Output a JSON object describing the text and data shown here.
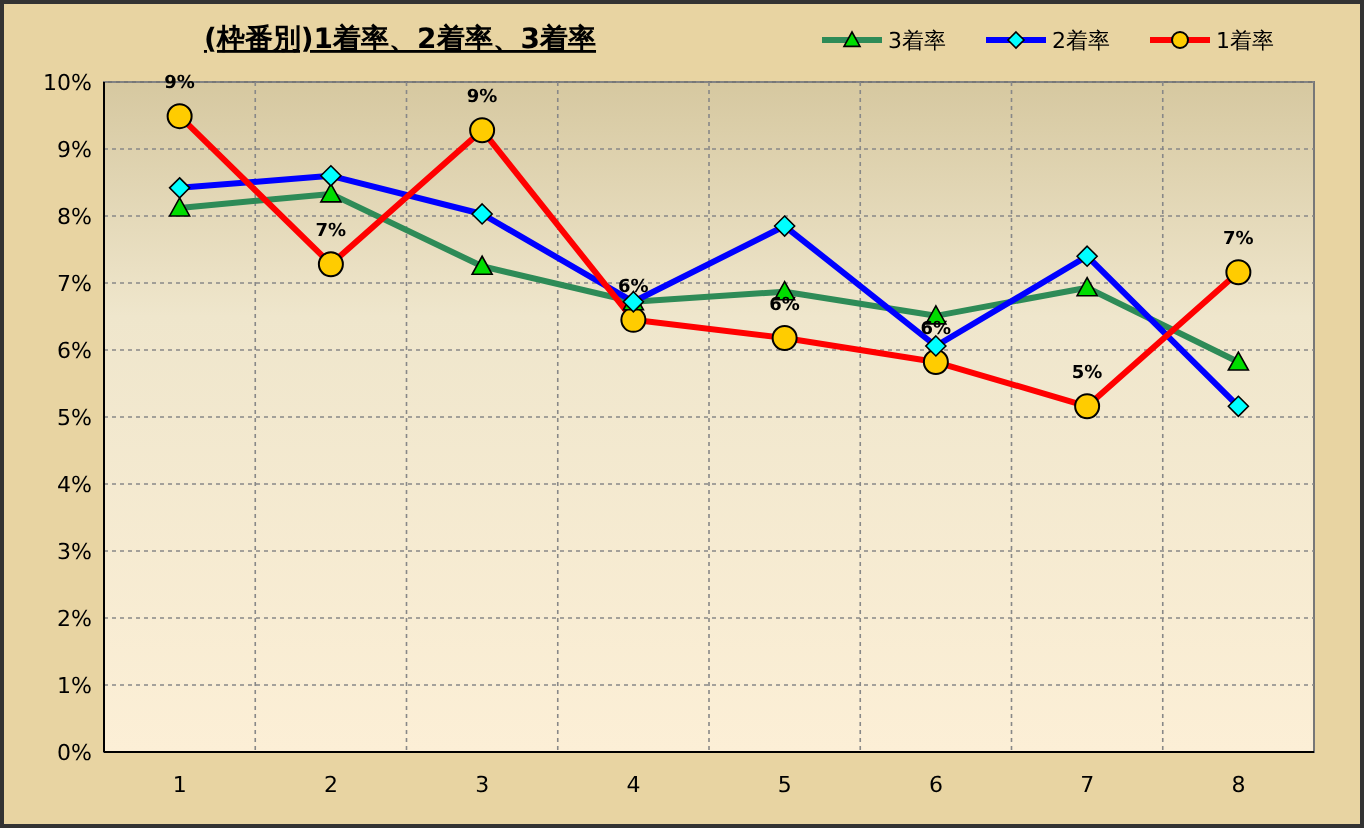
{
  "chart_data": {
    "type": "line",
    "title": "(枠番別)1着率、2着率、3着率",
    "categories": [
      "1",
      "2",
      "3",
      "4",
      "5",
      "6",
      "7",
      "8"
    ],
    "series": [
      {
        "name": "3着率",
        "color": "#2e8b57",
        "marker": "triangle",
        "values": [
          8.12,
          8.33,
          7.25,
          6.72,
          6.87,
          6.51,
          6.93,
          5.82
        ]
      },
      {
        "name": "2着率",
        "color": "#0000ff",
        "marker": "diamond",
        "values": [
          8.42,
          8.6,
          8.03,
          6.72,
          7.85,
          6.06,
          7.4,
          5.16
        ]
      },
      {
        "name": "1着率",
        "color": "#ff0000",
        "marker": "circle",
        "values": [
          9.49,
          7.28,
          9.28,
          6.45,
          6.18,
          5.82,
          5.16,
          7.16
        ],
        "value_labels": [
          "9%",
          "7%",
          "9%",
          "6%",
          "6%",
          "6%",
          "5%",
          "7%"
        ]
      }
    ],
    "ylim": [
      0,
      10
    ],
    "yticks": [
      {
        "value": 0,
        "label": "0%"
      },
      {
        "value": 1,
        "label": "1%"
      },
      {
        "value": 2,
        "label": "2%"
      },
      {
        "value": 3,
        "label": "3%"
      },
      {
        "value": 4,
        "label": "4%"
      },
      {
        "value": 5,
        "label": "5%"
      },
      {
        "value": 6,
        "label": "6%"
      },
      {
        "value": 7,
        "label": "7%"
      },
      {
        "value": 8,
        "label": "8%"
      },
      {
        "value": 9,
        "label": "9%"
      },
      {
        "value": 10,
        "label": "10%"
      }
    ],
    "grid": true,
    "legend": "top right",
    "line_style": "solid"
  }
}
